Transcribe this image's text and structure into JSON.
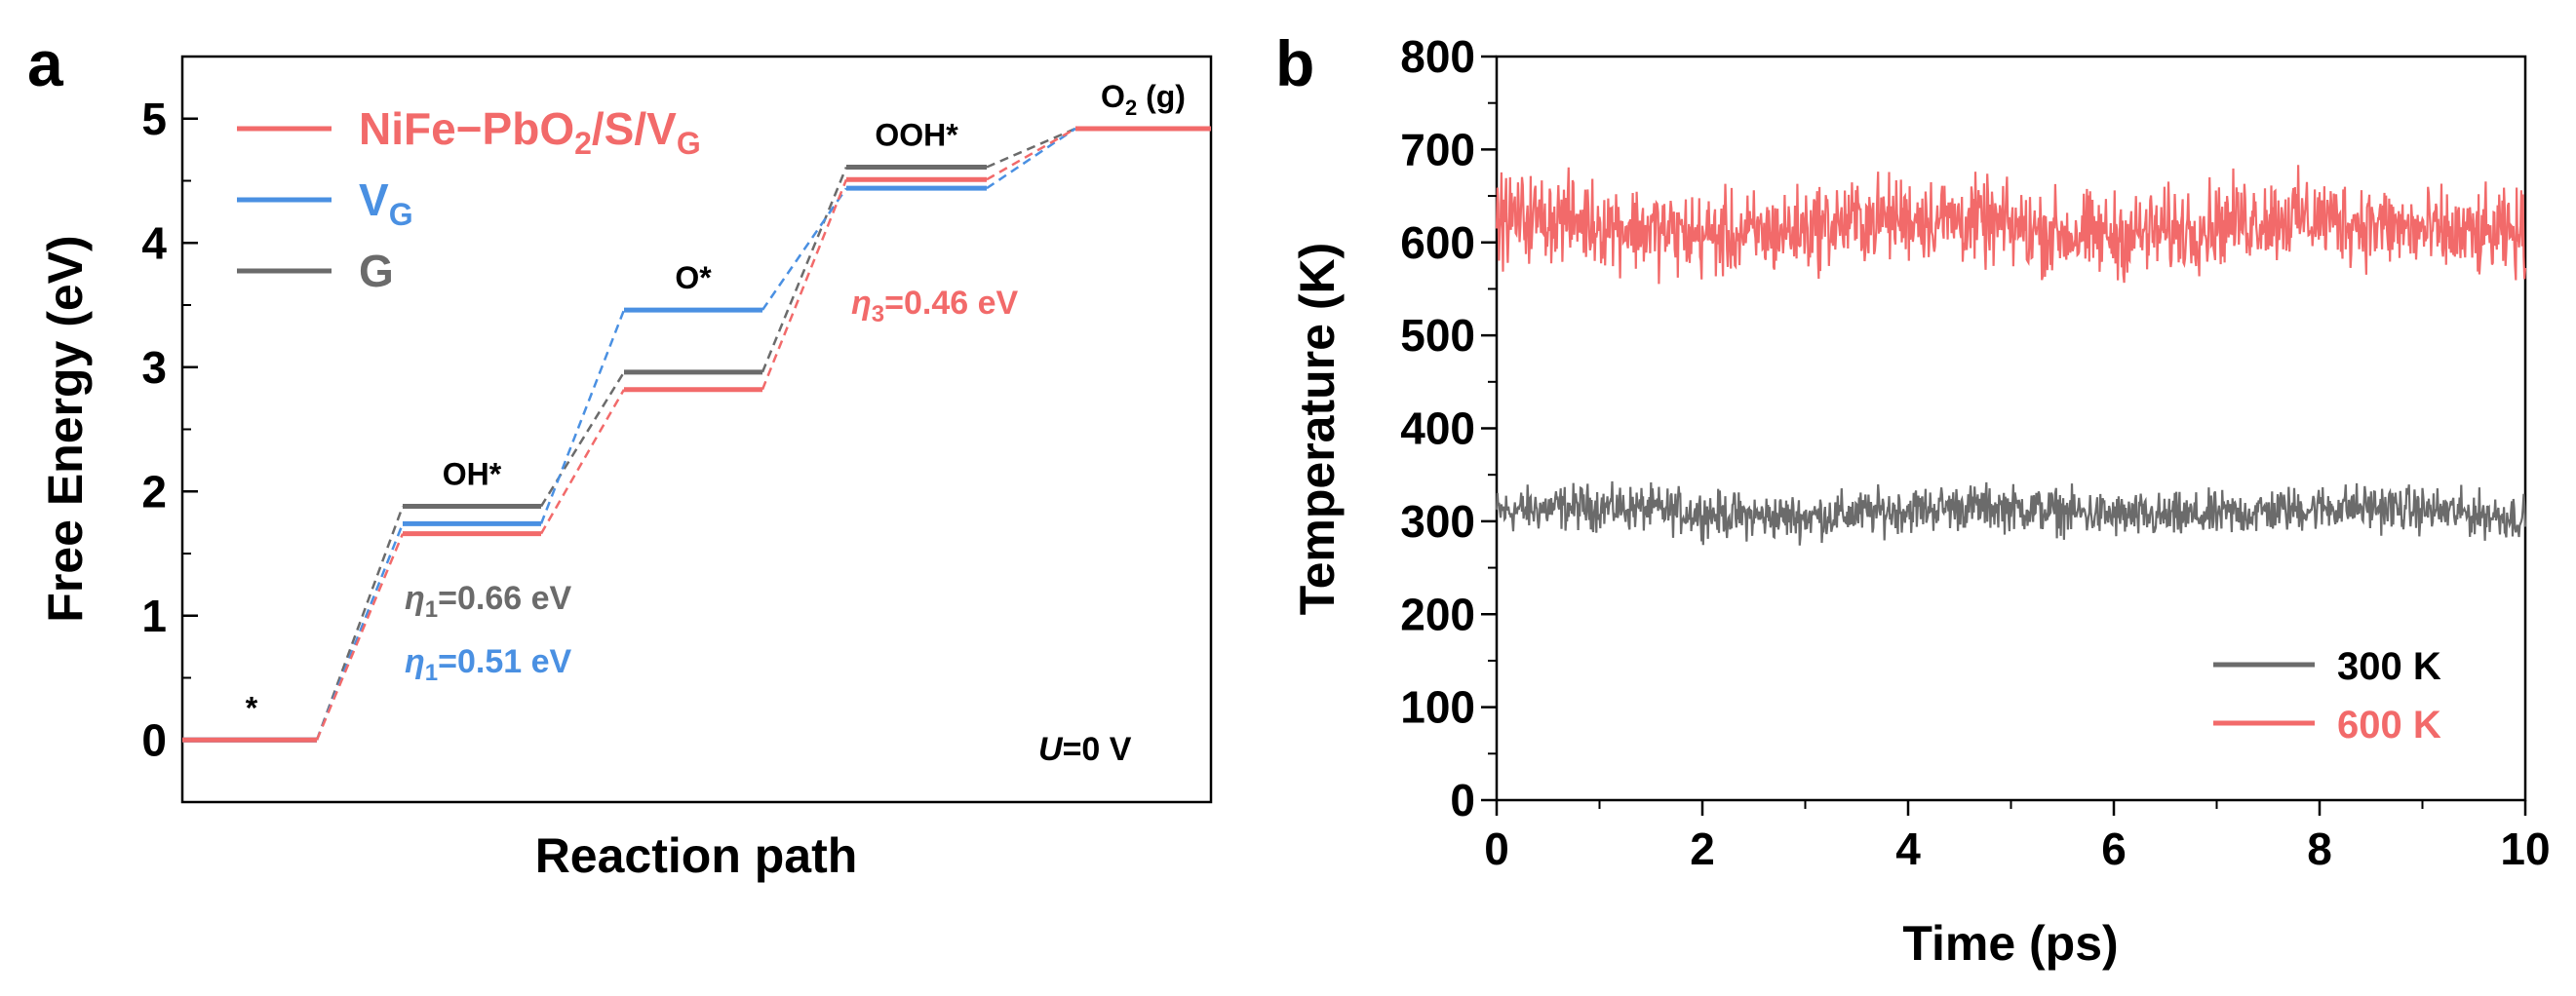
{
  "colors": {
    "red": "#f26a6a",
    "blue": "#4a90e2",
    "gray": "#6b6b6b",
    "axis": "#000000"
  },
  "chart_data": [
    {
      "type": "line",
      "panel": "a",
      "title": "",
      "xlabel": "Reaction path",
      "ylabel": "Free Energy (eV)",
      "ylim": [
        -0.5,
        5.5
      ],
      "yticks": [
        0,
        1,
        2,
        3,
        4,
        5
      ],
      "categories": [
        "*",
        "OH*",
        "O*",
        "OOH*",
        "O2 (g)"
      ],
      "category_labels": [
        {
          "main": "*"
        },
        {
          "main": "OH*"
        },
        {
          "main": "O*"
        },
        {
          "main": "OOH*"
        },
        {
          "main": "O",
          "sub": "2",
          "tail": " (g)"
        }
      ],
      "series": [
        {
          "name": "NiFe-PbO2/S/VG",
          "legend_main": "NiFe−PbO",
          "legend_sub1": "2",
          "legend_mid": "/S/V",
          "legend_sub2": "G",
          "color": "#f26a6a",
          "values": [
            0,
            1.66,
            2.82,
            4.51,
            4.92
          ]
        },
        {
          "name": "VG",
          "legend_main": "V",
          "legend_sub1": "G",
          "color": "#4a90e2",
          "values": [
            0,
            1.74,
            3.46,
            4.44,
            4.92
          ]
        },
        {
          "name": "G",
          "legend_main": "G",
          "color": "#6b6b6b",
          "values": [
            0,
            1.88,
            2.96,
            4.61,
            4.92
          ]
        }
      ],
      "annotations": [
        {
          "sym": "η",
          "sub": "1",
          "text": "=0.66 eV",
          "color": "#6b6b6b"
        },
        {
          "sym": "η",
          "sub": "1",
          "text": "=0.51 eV",
          "color": "#4a90e2"
        },
        {
          "sym": "η",
          "sub": "3",
          "text": "=0.46 eV",
          "color": "#f26a6a"
        },
        {
          "sym": "U",
          "sub": "",
          "text": "=0 V",
          "color": "#000000"
        }
      ]
    },
    {
      "type": "line",
      "panel": "b",
      "title": "",
      "xlabel": "Time (ps)",
      "ylabel": "Temperature (K)",
      "xlim": [
        0,
        10
      ],
      "ylim": [
        0,
        800
      ],
      "xticks": [
        0,
        2,
        4,
        6,
        8,
        10
      ],
      "yticks": [
        0,
        100,
        200,
        300,
        400,
        500,
        600,
        700,
        800
      ],
      "series": [
        {
          "name": "300 K",
          "color": "#6b6b6b",
          "mean": 310,
          "fluctuation": 15,
          "min": 258,
          "max": 343
        },
        {
          "name": "600 K",
          "color": "#f26a6a",
          "mean": 617,
          "fluctuation": 28,
          "min": 535,
          "max": 705
        }
      ]
    }
  ]
}
